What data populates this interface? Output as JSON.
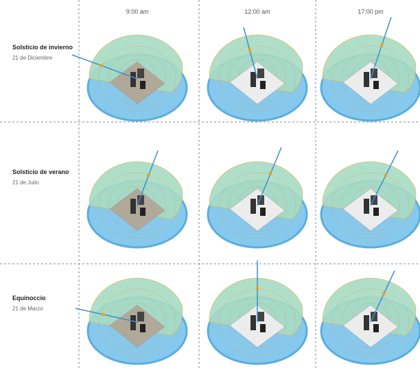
{
  "columns": [
    "9:00 am",
    "12:00 am",
    "17:00 pm"
  ],
  "rows": [
    {
      "title": "Solsticio de invierno",
      "date": "21 de Diciembre"
    },
    {
      "title": "Solsticio de verano",
      "date": "21 de Julio"
    },
    {
      "title": "Equinoccio",
      "date": "21 de Marzo"
    }
  ]
}
